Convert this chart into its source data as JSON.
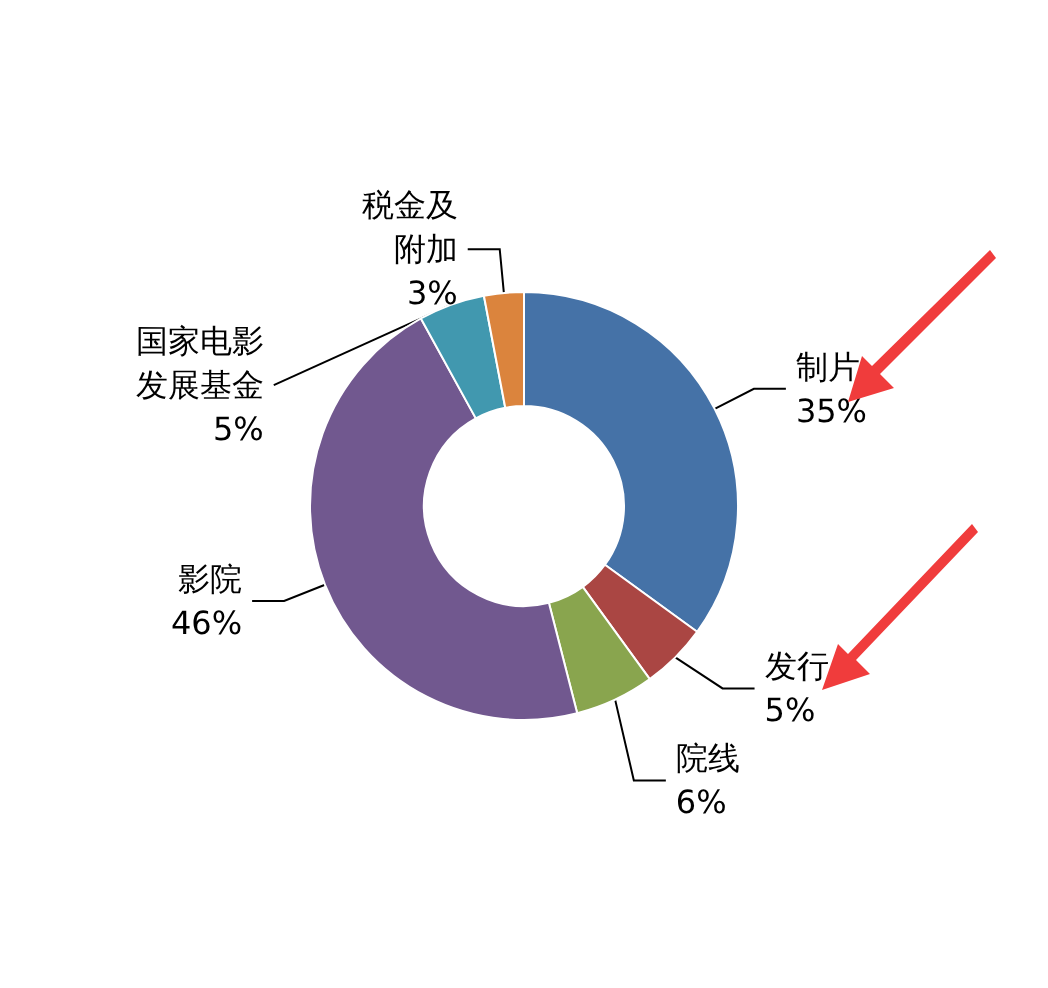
{
  "chart_data": {
    "type": "donut",
    "categories": [
      "制片",
      "发行",
      "院线",
      "影院",
      "国家电影发展基金",
      "税金及附加"
    ],
    "values": [
      35,
      5,
      6,
      46,
      5,
      3
    ],
    "colors": [
      "#4572a7",
      "#aa4643",
      "#89a54e",
      "#71588f",
      "#4198af",
      "#db843d"
    ],
    "value_labels": [
      "35%",
      "5%",
      "6%",
      "46%",
      "5%",
      "3%"
    ]
  }
}
